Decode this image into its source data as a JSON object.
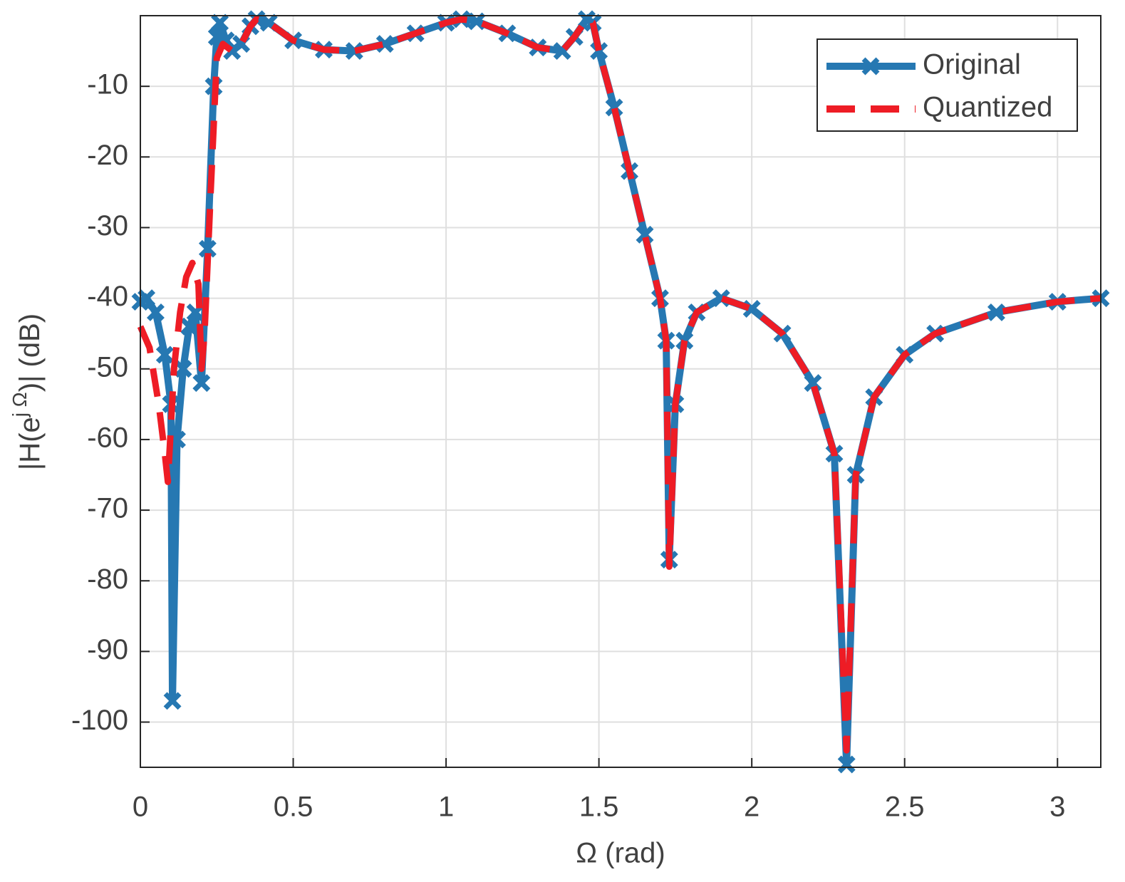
{
  "chart_data": {
    "type": "line",
    "xlabel": "Ω (rad)",
    "ylabel": {
      "base": "|H(e",
      "sup": "j Ω",
      "end": ")| (dB)"
    },
    "xlim": [
      0,
      3.14159
    ],
    "ylim": [
      -106.4,
      0
    ],
    "xticks": [
      0,
      0.5,
      1,
      1.5,
      2,
      2.5,
      3
    ],
    "yticks": [
      -100,
      -90,
      -80,
      -70,
      -60,
      -50,
      -40,
      -30,
      -20,
      -10
    ],
    "grid": true,
    "legend": "upper right",
    "series": [
      {
        "name": "Original",
        "color": "#2678b2",
        "style": "solid",
        "marker": "x",
        "x": [
          0,
          0.02,
          0.05,
          0.08,
          0.1,
          0.105,
          0.12,
          0.14,
          0.16,
          0.18,
          0.2,
          0.22,
          0.24,
          0.25,
          0.26,
          0.28,
          0.3,
          0.33,
          0.36,
          0.38,
          0.42,
          0.5,
          0.6,
          0.7,
          0.8,
          0.9,
          1.0,
          1.05,
          1.1,
          1.2,
          1.3,
          1.38,
          1.42,
          1.46,
          1.48,
          1.5,
          1.55,
          1.6,
          1.65,
          1.7,
          1.72,
          1.73,
          1.75,
          1.78,
          1.82,
          1.9,
          2.0,
          2.1,
          2.2,
          2.27,
          2.31,
          2.34,
          2.4,
          2.5,
          2.6,
          2.8,
          3.0,
          3.14159
        ],
        "values": [
          -40.5,
          -40,
          -42,
          -48,
          -55,
          -97,
          -60,
          -50,
          -44,
          -42,
          -52,
          -33,
          -10,
          -3,
          -1,
          -3.5,
          -5,
          -4,
          -1.5,
          -0.5,
          -1,
          -3.5,
          -4.8,
          -5,
          -4,
          -2.5,
          -1,
          -0.5,
          -0.8,
          -2.5,
          -4.5,
          -5,
          -3,
          -0.5,
          -1,
          -5,
          -13,
          -22,
          -31,
          -40,
          -46,
          -77,
          -55,
          -46,
          -42,
          -40,
          -41.5,
          -45,
          -52,
          -62,
          -106,
          -65,
          -54,
          -48,
          -45,
          -42,
          -40.5,
          -40
        ]
      },
      {
        "name": "Quantized",
        "color": "#ee1c25",
        "style": "dashed",
        "x": [
          0,
          0.03,
          0.06,
          0.08,
          0.09,
          0.1,
          0.11,
          0.13,
          0.15,
          0.17,
          0.19,
          0.2,
          0.21,
          0.23,
          0.25,
          0.27,
          0.3,
          0.33,
          0.36,
          0.38,
          0.42,
          0.5,
          0.6,
          0.7,
          0.8,
          0.9,
          1.0,
          1.05,
          1.1,
          1.2,
          1.3,
          1.38,
          1.42,
          1.46,
          1.48,
          1.5,
          1.55,
          1.6,
          1.65,
          1.7,
          1.72,
          1.73,
          1.75,
          1.78,
          1.82,
          1.9,
          2.0,
          2.1,
          2.2,
          2.27,
          2.31,
          2.34,
          2.4,
          2.5,
          2.6,
          2.8,
          3.0,
          3.14159
        ],
        "values": [
          -44,
          -47,
          -55,
          -62,
          -66,
          -58,
          -50,
          -42,
          -37,
          -35,
          -38,
          -50,
          -45,
          -25,
          -6,
          -4,
          -5,
          -4,
          -1.5,
          -0.5,
          -1,
          -3.5,
          -4.8,
          -5,
          -4,
          -2.5,
          -1,
          -0.5,
          -0.8,
          -2.5,
          -4.5,
          -5,
          -3,
          -0.5,
          -1,
          -5,
          -13,
          -22,
          -31,
          -40,
          -46,
          -78,
          -55,
          -46,
          -42,
          -40,
          -41.5,
          -45,
          -52,
          -62,
          -104,
          -65,
          -54,
          -48,
          -45,
          -42,
          -40.5,
          -40
        ]
      }
    ]
  }
}
